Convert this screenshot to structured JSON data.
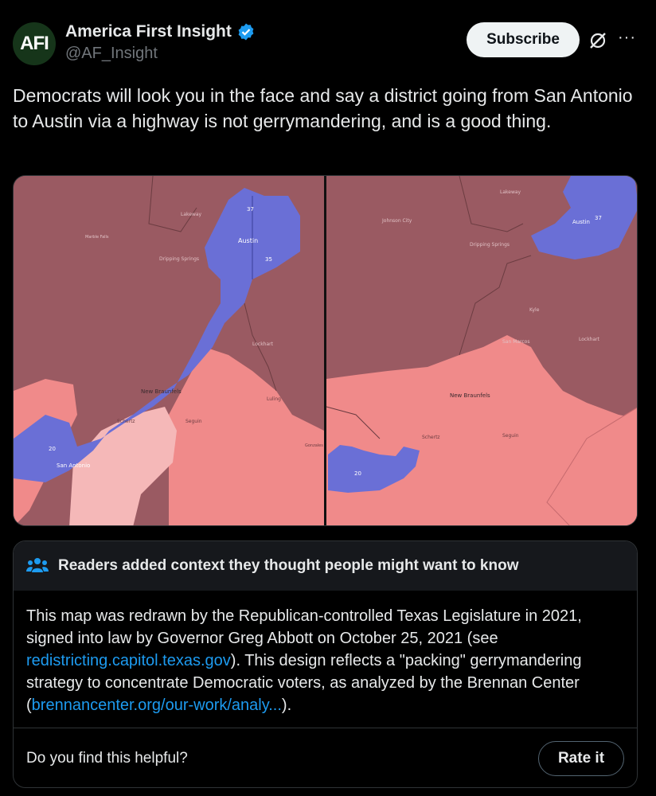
{
  "author": {
    "avatar_text": "AFI",
    "display_name": "America First Insight",
    "handle": "@AF_Insight",
    "verified_icon": "verified-badge-icon"
  },
  "actions": {
    "subscribe_label": "Subscribe",
    "grok_icon": "grok-icon",
    "more_label": "···"
  },
  "tweet": {
    "text": "Democrats will look you in the face and say a district going from San Antonio to Austin via a highway is not gerrymandering, and is a good thing."
  },
  "map_left": {
    "labels": [
      "37",
      "Austin",
      "35",
      "Dripping Springs",
      "Lockhart",
      "New Braunfels",
      "Seguin",
      "20",
      "San Antonio",
      "Schertz",
      "Luling",
      "Gonzales",
      "Lakeway",
      "Marble Falls"
    ]
  },
  "map_right": {
    "labels": [
      "Lakeway",
      "Austin",
      "37",
      "Johnson City",
      "Dripping Springs",
      "Kyle",
      "San Marcos",
      "Lockhart",
      "New Braunfels",
      "Schertz",
      "Seguin",
      "20"
    ]
  },
  "community_note": {
    "title": "Readers added context they thought people might want to know",
    "body_1": "This map  was redrawn by the Republican-controlled Texas Legislature in 2021, signed into law by Governor Greg Abbott on October 25, 2021 (see ",
    "link_1": "redistricting.capitol.texas.gov",
    "body_2": "). This design reflects a \"packing\" gerrymandering strategy to concentrate Democratic voters, as analyzed by the Brennan Center (",
    "link_2": "brennancenter.org/our-work/analy...",
    "body_3": ").",
    "helpful_question": "Do you find this helpful?",
    "rate_label": "Rate it"
  },
  "colors": {
    "background": "#000000",
    "dark_red_district": "#9a5a62",
    "light_red_district": "#f08a8a",
    "pink_district": "#f5b8b8",
    "blue_district": "#6a6fd6",
    "link": "#1d9bf0"
  }
}
